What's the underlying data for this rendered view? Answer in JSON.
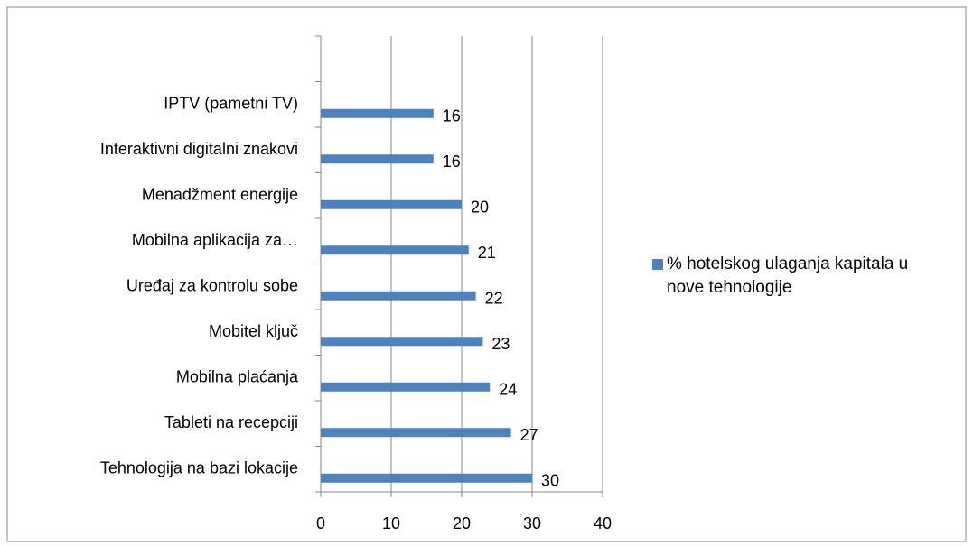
{
  "chart_data": {
    "type": "bar",
    "orientation": "horizontal",
    "categories": [
      "Tehnologija na bazi lokacije",
      "Tableti na recepciji",
      "Mobilna plaćanja",
      "Mobitel ključ",
      "Uređaj za kontrolu sobe",
      "Mobilna aplikacija za…",
      "Menadžment energije",
      "Interaktivni digitalni znakovi",
      "IPTV (pametni TV)",
      null
    ],
    "series": [
      {
        "name": "% hotelskog ulaganja kapitala u nove tehnologije",
        "color": "#4f81bd",
        "values": [
          30,
          27,
          24,
          23,
          22,
          21,
          20,
          16,
          16,
          null
        ]
      }
    ],
    "xlim": [
      0,
      40
    ],
    "xticks": [
      0,
      10,
      20,
      30,
      40
    ],
    "grid": true,
    "legend": "right"
  }
}
